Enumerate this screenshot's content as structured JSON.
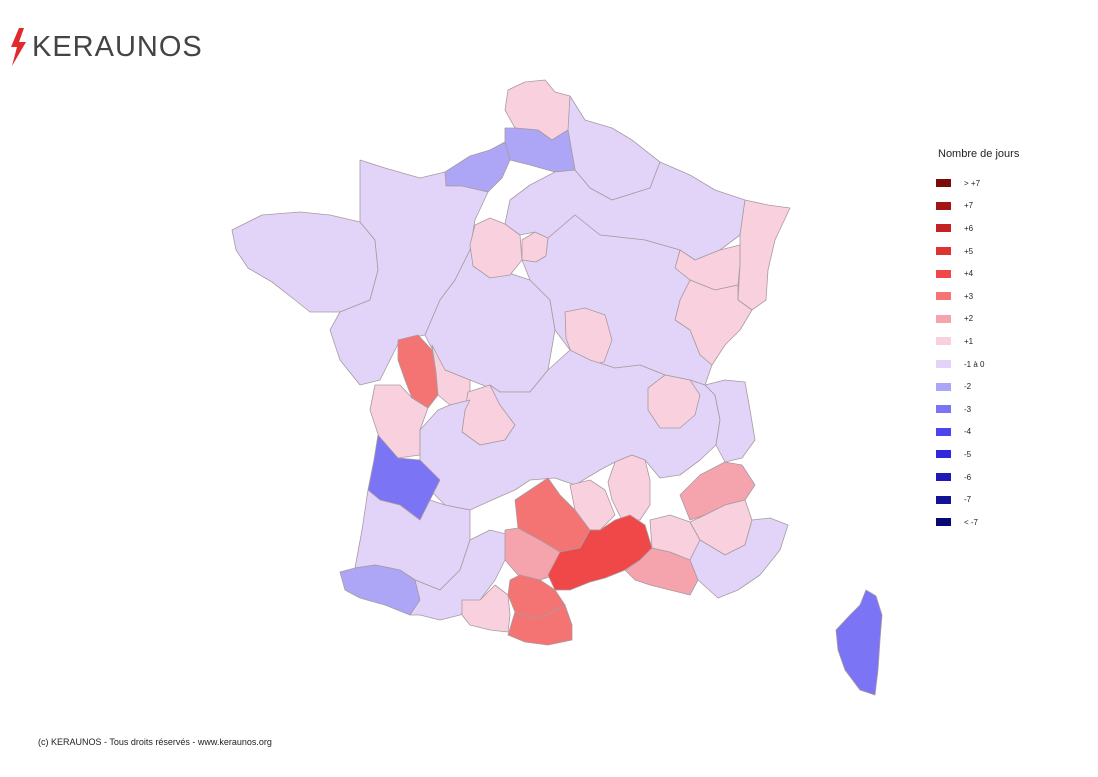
{
  "brand": {
    "name": "KERAUNOS",
    "bolt_color": "#e0292b"
  },
  "map": {
    "outline_color": "#a89aa0",
    "regions": [
      {
        "name": "nord",
        "cls": "+1"
      },
      {
        "name": "hauts-de-france-est",
        "cls": "-1 à 0"
      },
      {
        "name": "normandie-nord",
        "cls": "-2"
      },
      {
        "name": "picardie-nord",
        "cls": "-2"
      },
      {
        "name": "bretagne",
        "cls": "-1 à 0"
      },
      {
        "name": "pays-de-la-loire",
        "cls": "-1 à 0"
      },
      {
        "name": "centre",
        "cls": "-1 à 0"
      },
      {
        "name": "ile-de-france-ouest",
        "cls": "+1"
      },
      {
        "name": "ile-de-france-est",
        "cls": "+1"
      },
      {
        "name": "grand-est",
        "cls": "-1 à 0"
      },
      {
        "name": "alsace",
        "cls": "+1"
      },
      {
        "name": "lorraine-sud",
        "cls": "+1"
      },
      {
        "name": "franche-comte",
        "cls": "+1"
      },
      {
        "name": "bourgogne",
        "cls": "-1 à 0"
      },
      {
        "name": "nievre",
        "cls": "+1"
      },
      {
        "name": "deux-sevres",
        "cls": "+3"
      },
      {
        "name": "vienne",
        "cls": "+1"
      },
      {
        "name": "charente-maritime",
        "cls": "+1"
      },
      {
        "name": "haute-vienne",
        "cls": "+1"
      },
      {
        "name": "limousin-auvergne",
        "cls": "-1 à 0"
      },
      {
        "name": "rhone",
        "cls": "+1"
      },
      {
        "name": "savoie",
        "cls": "-1 à 0"
      },
      {
        "name": "gironde",
        "cls": "-3"
      },
      {
        "name": "landes",
        "cls": "-1 à 0"
      },
      {
        "name": "pyrenees-atlantiques",
        "cls": "-2"
      },
      {
        "name": "gers-haute-garonne",
        "cls": "-1 à 0"
      },
      {
        "name": "aveyron",
        "cls": "+3"
      },
      {
        "name": "tarn",
        "cls": "+2"
      },
      {
        "name": "lozere",
        "cls": "+1"
      },
      {
        "name": "ardeche",
        "cls": "+1"
      },
      {
        "name": "herault-gard",
        "cls": "+4"
      },
      {
        "name": "aude",
        "cls": "+3"
      },
      {
        "name": "pyrenees-orientales",
        "cls": "+3"
      },
      {
        "name": "ariege",
        "cls": "+1"
      },
      {
        "name": "bouches-du-rhone",
        "cls": "+2"
      },
      {
        "name": "vaucluse",
        "cls": "+1"
      },
      {
        "name": "drome-isere",
        "cls": "+2"
      },
      {
        "name": "alpes",
        "cls": "+1"
      },
      {
        "name": "var-alpes-maritimes",
        "cls": "-1 à 0"
      },
      {
        "name": "corse",
        "cls": "-3"
      }
    ]
  },
  "legend": {
    "title": "Nombre de jours",
    "items": [
      {
        "label": "> +7",
        "color": "#7a0b0b"
      },
      {
        "label": "+7",
        "color": "#a31515"
      },
      {
        "label": "+6",
        "color": "#c42222"
      },
      {
        "label": "+5",
        "color": "#dd3333"
      },
      {
        "label": "+4",
        "color": "#f04848"
      },
      {
        "label": "+3",
        "color": "#f47474"
      },
      {
        "label": "+2",
        "color": "#f5a3ad"
      },
      {
        "label": "+1",
        "color": "#f9d1de"
      },
      {
        "label": "-1 à 0",
        "color": "#e2d4f8"
      },
      {
        "label": "-2",
        "color": "#ada5f6"
      },
      {
        "label": "-3",
        "color": "#7b74f4"
      },
      {
        "label": "-4",
        "color": "#4c45ef"
      },
      {
        "label": "-5",
        "color": "#3028dc"
      },
      {
        "label": "-6",
        "color": "#2019b8"
      },
      {
        "label": "-7",
        "color": "#121296"
      },
      {
        "label": "< -7",
        "color": "#080872"
      }
    ]
  },
  "footer": {
    "credit": "(c) KERAUNOS - Tous droits réservés - www.keraunos.org"
  }
}
